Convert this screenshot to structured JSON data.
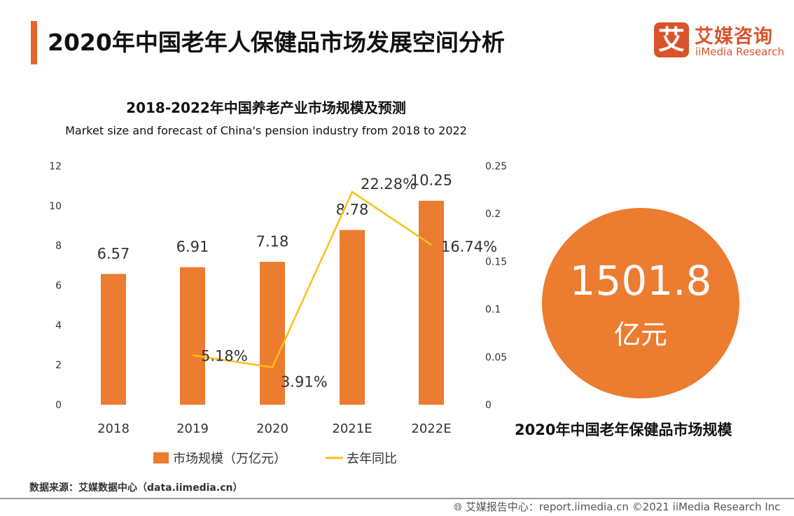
{
  "header": {
    "title": "2020年中国老年人保健品市场发展空间分析",
    "logo_mark": "艾",
    "logo_cn": "艾媒咨询",
    "logo_en": "iiMedia Research",
    "accent": "#e8652f"
  },
  "chart_data": {
    "type": "bar+line",
    "title": "2018-2022年中国养老产业市场规模及预测",
    "subtitle": "Market size and forecast of China's pension industry from 2018 to 2022",
    "categories": [
      "2018",
      "2019",
      "2020",
      "2021E",
      "2022E"
    ],
    "series": [
      {
        "name": "市场规模（万亿元）",
        "type": "bar",
        "axis": "left",
        "color": "#ec7c30",
        "values": [
          6.57,
          6.91,
          7.18,
          8.78,
          10.25
        ],
        "labels": [
          "6.57",
          "6.91",
          "7.18",
          "8.78",
          "10.25"
        ]
      },
      {
        "name": "去年同比",
        "type": "line",
        "axis": "right",
        "color": "#fbbf14",
        "values": [
          null,
          0.0518,
          0.0391,
          0.2228,
          0.1674
        ],
        "labels": [
          "",
          "5.18%",
          "3.91%",
          "22.28%",
          "16.74%"
        ]
      }
    ],
    "left_axis": {
      "ylim": [
        0,
        12
      ],
      "ticks": [
        "0",
        "2",
        "4",
        "6",
        "8",
        "10",
        "12"
      ]
    },
    "right_axis": {
      "ylim": [
        0,
        0.25
      ],
      "ticks": [
        "0",
        "0.05",
        "0.1",
        "0.15",
        "0.2",
        "0.25"
      ]
    },
    "grid": false,
    "legend": "bottom"
  },
  "highlight": {
    "value": "1501.8",
    "unit": "亿元",
    "caption": "2020年中国老年保健品市场规模",
    "color": "#ec7c30"
  },
  "source": "数据来源：艾媒数据中心（data.iimedia.cn）",
  "footer": {
    "icon": "globe-cursor-icon",
    "text": "艾媒报告中心：report.iimedia.cn   ©2021  iiMedia Research  Inc"
  }
}
